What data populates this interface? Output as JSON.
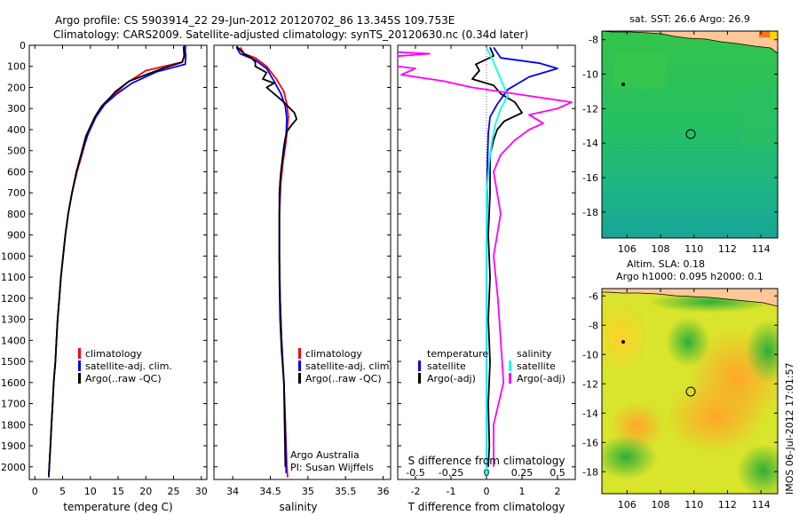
{
  "header": {
    "line1": "Argo profile: CS 5903914_22 29-Jun-2012 20120702_86 13.345S 109.753E",
    "line2": "Climatology: CARS2009. Satellite-adjusted climatology: synTS_20120630.nc (0.34d later)"
  },
  "footer": {
    "credit_line1": "Argo Australia",
    "credit_line2": "PI: Susan Wijffels",
    "timestamp": "IMOS 06-Jul-2012 17:01:57"
  },
  "colors": {
    "climatology": "#ff0000",
    "satellite": "#0000ff",
    "argo": "#000000",
    "satellite_s": "#00ffff",
    "argo_s": "#ff00ff",
    "land": "#ffc896"
  },
  "chart_data": [
    {
      "type": "line",
      "panel": "temperature",
      "xlabel": "temperature (deg C)",
      "xlim": [
        -1,
        31
      ],
      "xticks": [
        0,
        5,
        10,
        15,
        20,
        25,
        30
      ],
      "ylim": [
        2060,
        0
      ],
      "yticks": [
        0,
        100,
        200,
        300,
        400,
        500,
        600,
        700,
        800,
        900,
        1000,
        1100,
        1200,
        1300,
        1400,
        1500,
        1600,
        1700,
        1800,
        1900,
        2000
      ],
      "legend": [
        "climatology",
        "satellite-adj. clim.",
        "Argo(..raw -QC)"
      ],
      "series": [
        {
          "name": "climatology",
          "color": "#ff0000",
          "points": [
            [
              27.2,
              0
            ],
            [
              27.0,
              50
            ],
            [
              26.5,
              80
            ],
            [
              20.0,
              120
            ],
            [
              16.5,
              180
            ],
            [
              14.5,
              230
            ],
            [
              12.5,
              280
            ],
            [
              11.0,
              340
            ],
            [
              9.5,
              420
            ],
            [
              8.7,
              500
            ],
            [
              7.6,
              600
            ],
            [
              6.7,
              700
            ],
            [
              6.0,
              800
            ],
            [
              5.5,
              900
            ],
            [
              5.1,
              1000
            ],
            [
              4.7,
              1100
            ],
            [
              4.4,
              1200
            ],
            [
              4.1,
              1300
            ],
            [
              3.9,
              1400
            ],
            [
              3.7,
              1500
            ],
            [
              3.4,
              1600
            ],
            [
              3.2,
              1700
            ],
            [
              3.0,
              1800
            ],
            [
              2.8,
              1900
            ],
            [
              2.6,
              2000
            ],
            [
              2.5,
              2050
            ]
          ]
        },
        {
          "name": "satellite-adj. clim.",
          "color": "#0000ff",
          "points": [
            [
              27.0,
              0
            ],
            [
              27.2,
              50
            ],
            [
              27.1,
              90
            ],
            [
              22.0,
              125
            ],
            [
              17.5,
              180
            ],
            [
              14.8,
              230
            ],
            [
              12.6,
              280
            ],
            [
              11.0,
              340
            ],
            [
              9.6,
              420
            ],
            [
              8.6,
              500
            ],
            [
              7.5,
              600
            ],
            [
              6.7,
              700
            ],
            [
              6.0,
              800
            ],
            [
              5.5,
              900
            ],
            [
              5.1,
              1000
            ],
            [
              4.7,
              1100
            ],
            [
              4.4,
              1200
            ],
            [
              4.1,
              1300
            ],
            [
              3.9,
              1400
            ],
            [
              3.7,
              1500
            ],
            [
              3.4,
              1600
            ],
            [
              3.2,
              1700
            ],
            [
              3.0,
              1800
            ],
            [
              2.8,
              1900
            ],
            [
              2.6,
              2000
            ],
            [
              2.5,
              2050
            ]
          ]
        },
        {
          "name": "Argo(..raw -QC)",
          "color": "#000000",
          "points": [
            [
              26.8,
              5
            ],
            [
              26.9,
              50
            ],
            [
              26.6,
              80
            ],
            [
              23.0,
              110
            ],
            [
              17.0,
              170
            ],
            [
              14.5,
              220
            ],
            [
              13.5,
              250
            ],
            [
              12.0,
              290
            ],
            [
              10.8,
              340
            ],
            [
              9.2,
              430
            ],
            [
              8.5,
              500
            ],
            [
              7.5,
              600
            ],
            [
              6.7,
              700
            ],
            [
              6.0,
              800
            ],
            [
              5.5,
              900
            ],
            [
              5.1,
              1000
            ],
            [
              4.7,
              1100
            ],
            [
              4.4,
              1200
            ],
            [
              4.1,
              1300
            ],
            [
              3.9,
              1400
            ],
            [
              3.7,
              1500
            ],
            [
              3.4,
              1600
            ],
            [
              3.2,
              1700
            ],
            [
              3.0,
              1800
            ],
            [
              2.8,
              1900
            ],
            [
              2.6,
              2000
            ],
            [
              2.5,
              2040
            ]
          ]
        }
      ]
    },
    {
      "type": "line",
      "panel": "salinity",
      "xlabel": "salinity",
      "xlim": [
        33.75,
        36.1
      ],
      "xticks": [
        34,
        34.5,
        35,
        35.5,
        36
      ],
      "ylim": [
        2060,
        0
      ],
      "legend": [
        "climatology",
        "satellite-adj. clim.",
        "Argo(..raw -QC)"
      ],
      "series": [
        {
          "name": "climatology",
          "color": "#ff0000",
          "points": [
            [
              34.1,
              10
            ],
            [
              34.15,
              40
            ],
            [
              34.3,
              60
            ],
            [
              34.45,
              100
            ],
            [
              34.58,
              160
            ],
            [
              34.68,
              220
            ],
            [
              34.72,
              280
            ],
            [
              34.74,
              340
            ],
            [
              34.72,
              420
            ],
            [
              34.7,
              480
            ],
            [
              34.67,
              550
            ],
            [
              34.64,
              650
            ],
            [
              34.62,
              800
            ],
            [
              34.62,
              1000
            ],
            [
              34.63,
              1200
            ],
            [
              34.65,
              1400
            ],
            [
              34.68,
              1600
            ],
            [
              34.7,
              1800
            ],
            [
              34.72,
              2000
            ],
            [
              34.73,
              2050
            ]
          ]
        },
        {
          "name": "satellite-adj. clim.",
          "color": "#0000ff",
          "points": [
            [
              34.05,
              10
            ],
            [
              34.1,
              40
            ],
            [
              34.3,
              70
            ],
            [
              34.45,
              110
            ],
            [
              34.55,
              170
            ],
            [
              34.64,
              230
            ],
            [
              34.7,
              290
            ],
            [
              34.72,
              350
            ],
            [
              34.71,
              420
            ],
            [
              34.69,
              480
            ],
            [
              34.66,
              550
            ],
            [
              34.63,
              650
            ],
            [
              34.62,
              800
            ],
            [
              34.62,
              1000
            ],
            [
              34.63,
              1200
            ],
            [
              34.65,
              1400
            ],
            [
              34.68,
              1600
            ],
            [
              34.7,
              1800
            ],
            [
              34.71,
              2000
            ],
            [
              34.71,
              2030
            ]
          ]
        },
        {
          "name": "Argo(..raw -QC)",
          "color": "#000000",
          "points": [
            [
              34.05,
              5
            ],
            [
              34.15,
              40
            ],
            [
              34.25,
              60
            ],
            [
              34.3,
              80
            ],
            [
              34.3,
              100
            ],
            [
              34.45,
              130
            ],
            [
              34.4,
              160
            ],
            [
              34.55,
              180
            ],
            [
              34.45,
              200
            ],
            [
              34.55,
              230
            ],
            [
              34.68,
              270
            ],
            [
              34.82,
              320
            ],
            [
              34.85,
              350
            ],
            [
              34.78,
              380
            ],
            [
              34.72,
              410
            ],
            [
              34.7,
              440
            ],
            [
              34.68,
              480
            ],
            [
              34.66,
              540
            ],
            [
              34.64,
              600
            ],
            [
              34.62,
              700
            ],
            [
              34.62,
              900
            ],
            [
              34.62,
              1100
            ],
            [
              34.63,
              1300
            ],
            [
              34.65,
              1450
            ],
            [
              34.68,
              1600
            ],
            [
              34.69,
              1800
            ],
            [
              34.7,
              2000
            ]
          ]
        }
      ]
    },
    {
      "type": "line",
      "panel": "differences",
      "xlabel": "T difference from climatology",
      "xlabel_top": "S difference from climatology",
      "xlim": [
        -2.5,
        2.5
      ],
      "xticks": [
        -2,
        -1,
        0,
        1,
        2
      ],
      "sticks": [
        -0.5,
        -0.25,
        0,
        0.25,
        0.5
      ],
      "ylim": [
        2060,
        0
      ],
      "legend_temperature": {
        "title": "temperature",
        "items": [
          "satellite",
          "Argo(-adj)"
        ]
      },
      "legend_salinity": {
        "title": "salinity",
        "items": [
          "satellite",
          "Argo(-adj)"
        ]
      },
      "series": [
        {
          "name": "satellite (T)",
          "color": "#0000ff",
          "points": [
            [
              0.2,
              10
            ],
            [
              0.4,
              60
            ],
            [
              1.5,
              85
            ],
            [
              2.0,
              110
            ],
            [
              1.2,
              150
            ],
            [
              0.6,
              210
            ],
            [
              0.3,
              280
            ],
            [
              0.1,
              340
            ],
            [
              0.05,
              420
            ],
            [
              0.02,
              600
            ],
            [
              0.0,
              1000
            ],
            [
              0.0,
              2000
            ]
          ]
        },
        {
          "name": "Argo(-adj) (T)",
          "color": "#000000",
          "points": [
            [
              0.1,
              10
            ],
            [
              0.2,
              50
            ],
            [
              -0.3,
              90
            ],
            [
              -0.2,
              120
            ],
            [
              -0.4,
              160
            ],
            [
              0.2,
              190
            ],
            [
              0.4,
              230
            ],
            [
              0.8,
              270
            ],
            [
              1.0,
              320
            ],
            [
              0.5,
              360
            ],
            [
              0.3,
              400
            ],
            [
              0.2,
              450
            ],
            [
              0.1,
              520
            ],
            [
              0.1,
              700
            ],
            [
              0.05,
              900
            ],
            [
              0.1,
              1100
            ],
            [
              0.05,
              1300
            ],
            [
              0.1,
              1500
            ],
            [
              0.05,
              1700
            ],
            [
              0.08,
              1900
            ],
            [
              0.05,
              2000
            ]
          ]
        },
        {
          "name": "satellite (S)",
          "color": "#00ffff",
          "points": [
            [
              0.0,
              10
            ],
            [
              0.05,
              80
            ],
            [
              0.1,
              160
            ],
            [
              0.15,
              240
            ],
            [
              0.1,
              300
            ],
            [
              0.06,
              380
            ],
            [
              0.04,
              450
            ],
            [
              0.02,
              550
            ],
            [
              0.0,
              700
            ],
            [
              0.0,
              1000
            ],
            [
              0.0,
              2040
            ]
          ]
        },
        {
          "name": "Argo(-adj) (S)",
          "color": "#ff00ff",
          "points": [
            [
              -1.0,
              20
            ],
            [
              -0.4,
              40
            ],
            [
              -1.0,
              70
            ],
            [
              -0.5,
              110
            ],
            [
              -0.6,
              140
            ],
            [
              -0.3,
              170
            ],
            [
              -0.1,
              200
            ],
            [
              0.2,
              230
            ],
            [
              0.6,
              270
            ],
            [
              0.5,
              300
            ],
            [
              0.3,
              330
            ],
            [
              0.4,
              370
            ],
            [
              0.3,
              400
            ],
            [
              0.2,
              450
            ],
            [
              0.1,
              520
            ],
            [
              0.05,
              600
            ],
            [
              0.1,
              800
            ],
            [
              0.05,
              1000
            ],
            [
              0.08,
              1200
            ],
            [
              0.1,
              1400
            ],
            [
              0.12,
              1600
            ],
            [
              0.05,
              1800
            ],
            [
              0.05,
              2000
            ]
          ]
        }
      ]
    },
    {
      "type": "heatmap",
      "panel": "sst_map",
      "title": "sat. SST: 26.6  Argo: 26.9",
      "xlim": [
        104.5,
        115
      ],
      "ylim": [
        -19.5,
        -7.5
      ],
      "xticks": [
        106,
        108,
        110,
        112,
        114
      ],
      "yticks": [
        -8,
        -10,
        -12,
        -14,
        -16,
        -18
      ],
      "profile_location": {
        "lon": 109.753,
        "lat": -13.345
      }
    },
    {
      "type": "heatmap",
      "panel": "sla_map",
      "title_line1": "Altim. SLA: 0.18",
      "title_line2": "Argo h1000: 0.095  h2000: 0.1",
      "xlim": [
        104.5,
        115
      ],
      "ylim": [
        -19.5,
        -5.5
      ],
      "xticks": [
        106,
        108,
        110,
        112,
        114
      ],
      "yticks": [
        -6,
        -8,
        -10,
        -12,
        -14,
        -16,
        -18
      ],
      "profile_location": {
        "lon": 109.753,
        "lat": -13.345
      }
    }
  ]
}
